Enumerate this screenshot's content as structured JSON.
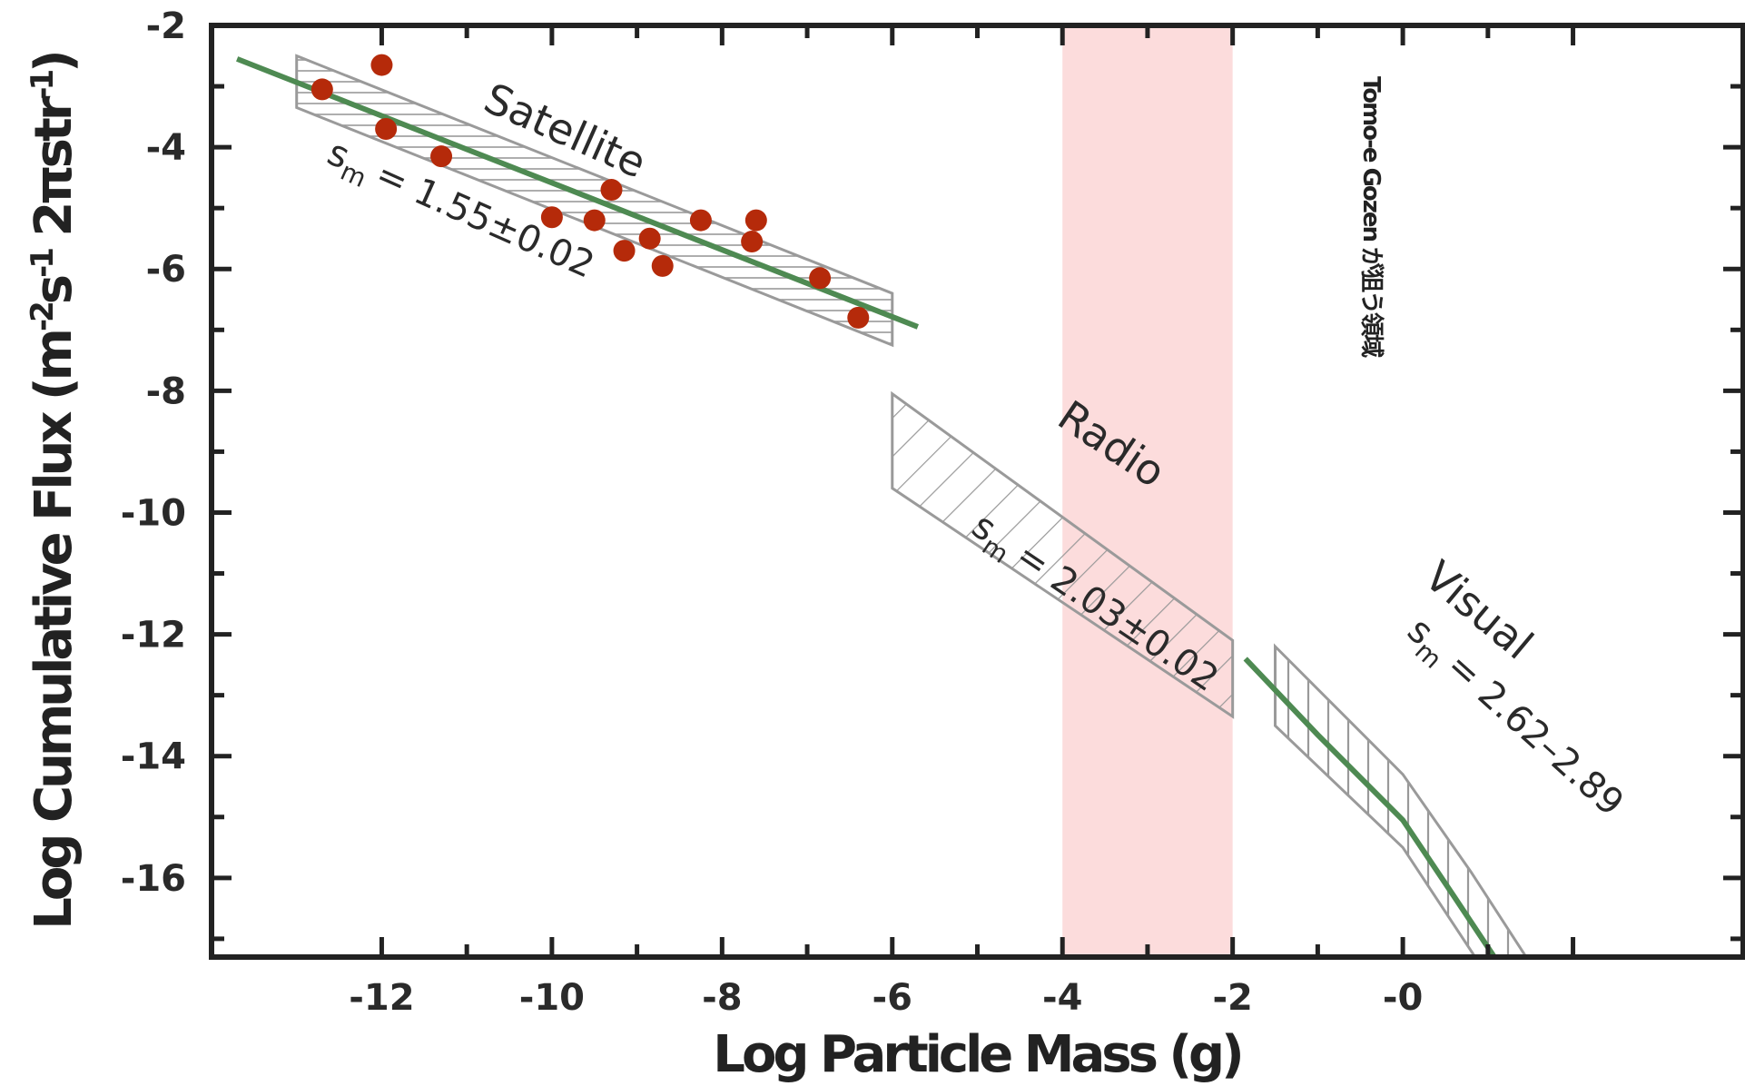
{
  "chart_data": {
    "type": "scatter",
    "xlabel": "Log Particle Mass (g)",
    "ylabel_parts": {
      "main": "Log Cumulative Flux (m",
      "e1": "-2",
      "s": "s",
      "e2": "-1",
      "tail": " 2πstr",
      "e3": "-1",
      "close": ")"
    },
    "xlim": [
      -14,
      4
    ],
    "ylim": [
      -17.3,
      -2
    ],
    "x_ticks": [
      -12,
      -10,
      -8,
      -6,
      -4,
      -2,
      0
    ],
    "x_tick_labels": [
      "-12",
      "-10",
      "-8",
      "-6",
      "-4",
      "-2",
      "-0"
    ],
    "y_ticks": [
      -2,
      -4,
      -6,
      -8,
      -10,
      -12,
      -14,
      -16
    ],
    "y_tick_labels": [
      "-2",
      "-4",
      "-6",
      "-8",
      "-10",
      "-12",
      "-14",
      "-16"
    ],
    "grid": false,
    "points": {
      "color": "#b52a0a",
      "x": [
        -12.7,
        -12.0,
        -11.95,
        -11.3,
        -10.0,
        -9.5,
        -9.3,
        -9.15,
        -8.85,
        -8.7,
        -8.25,
        -7.65,
        -7.6,
        -6.85,
        -6.4
      ],
      "y": [
        -3.05,
        -2.65,
        -3.7,
        -4.15,
        -5.15,
        -5.2,
        -4.7,
        -5.7,
        -5.5,
        -5.95,
        -5.2,
        -5.55,
        -5.2,
        -6.15,
        -6.8
      ]
    },
    "fits": [
      {
        "x": [
          -13.7,
          -5.7
        ],
        "y": [
          -2.55,
          -6.95
        ],
        "color": "#4e8a52"
      },
      {
        "x": [
          -1.85,
          -1.0,
          0.0,
          0.6,
          1.1
        ],
        "y": [
          -12.4,
          -13.65,
          -15.05,
          -16.3,
          -17.35
        ],
        "color": "#4e8a52"
      }
    ],
    "bands": [
      {
        "name": "Satellite",
        "slope_label": "= 1.55±0.02",
        "polygon": [
          [
            -13.0,
            -2.5
          ],
          [
            -6.0,
            -6.4
          ],
          [
            -6.0,
            -7.25
          ],
          [
            -13.0,
            -3.35
          ]
        ],
        "hatch": "horizontal"
      },
      {
        "name": "Radio",
        "slope_label": "= 2.03±0.02",
        "polygon": [
          [
            -6.0,
            -8.05
          ],
          [
            -2.0,
            -12.1
          ],
          [
            -2.0,
            -13.35
          ],
          [
            -6.0,
            -9.6
          ]
        ],
        "hatch": "diagonal"
      },
      {
        "name": "Visual",
        "slope_label": "= 2.62–2.89",
        "polygon": [
          [
            -1.5,
            -12.2
          ],
          [
            0.0,
            -14.3
          ],
          [
            0.8,
            -15.9
          ],
          [
            1.45,
            -17.3
          ],
          [
            0.85,
            -17.3
          ],
          [
            0.0,
            -15.5
          ],
          [
            -1.5,
            -13.5
          ]
        ],
        "hatch": "vertical"
      }
    ],
    "slope_symbol": "s",
    "slope_subscript": "m",
    "highlight_region": {
      "x": [
        -4,
        -2
      ],
      "color": "#fcdcdc",
      "label": "Tomo-e Gozen が狙う領域"
    }
  }
}
